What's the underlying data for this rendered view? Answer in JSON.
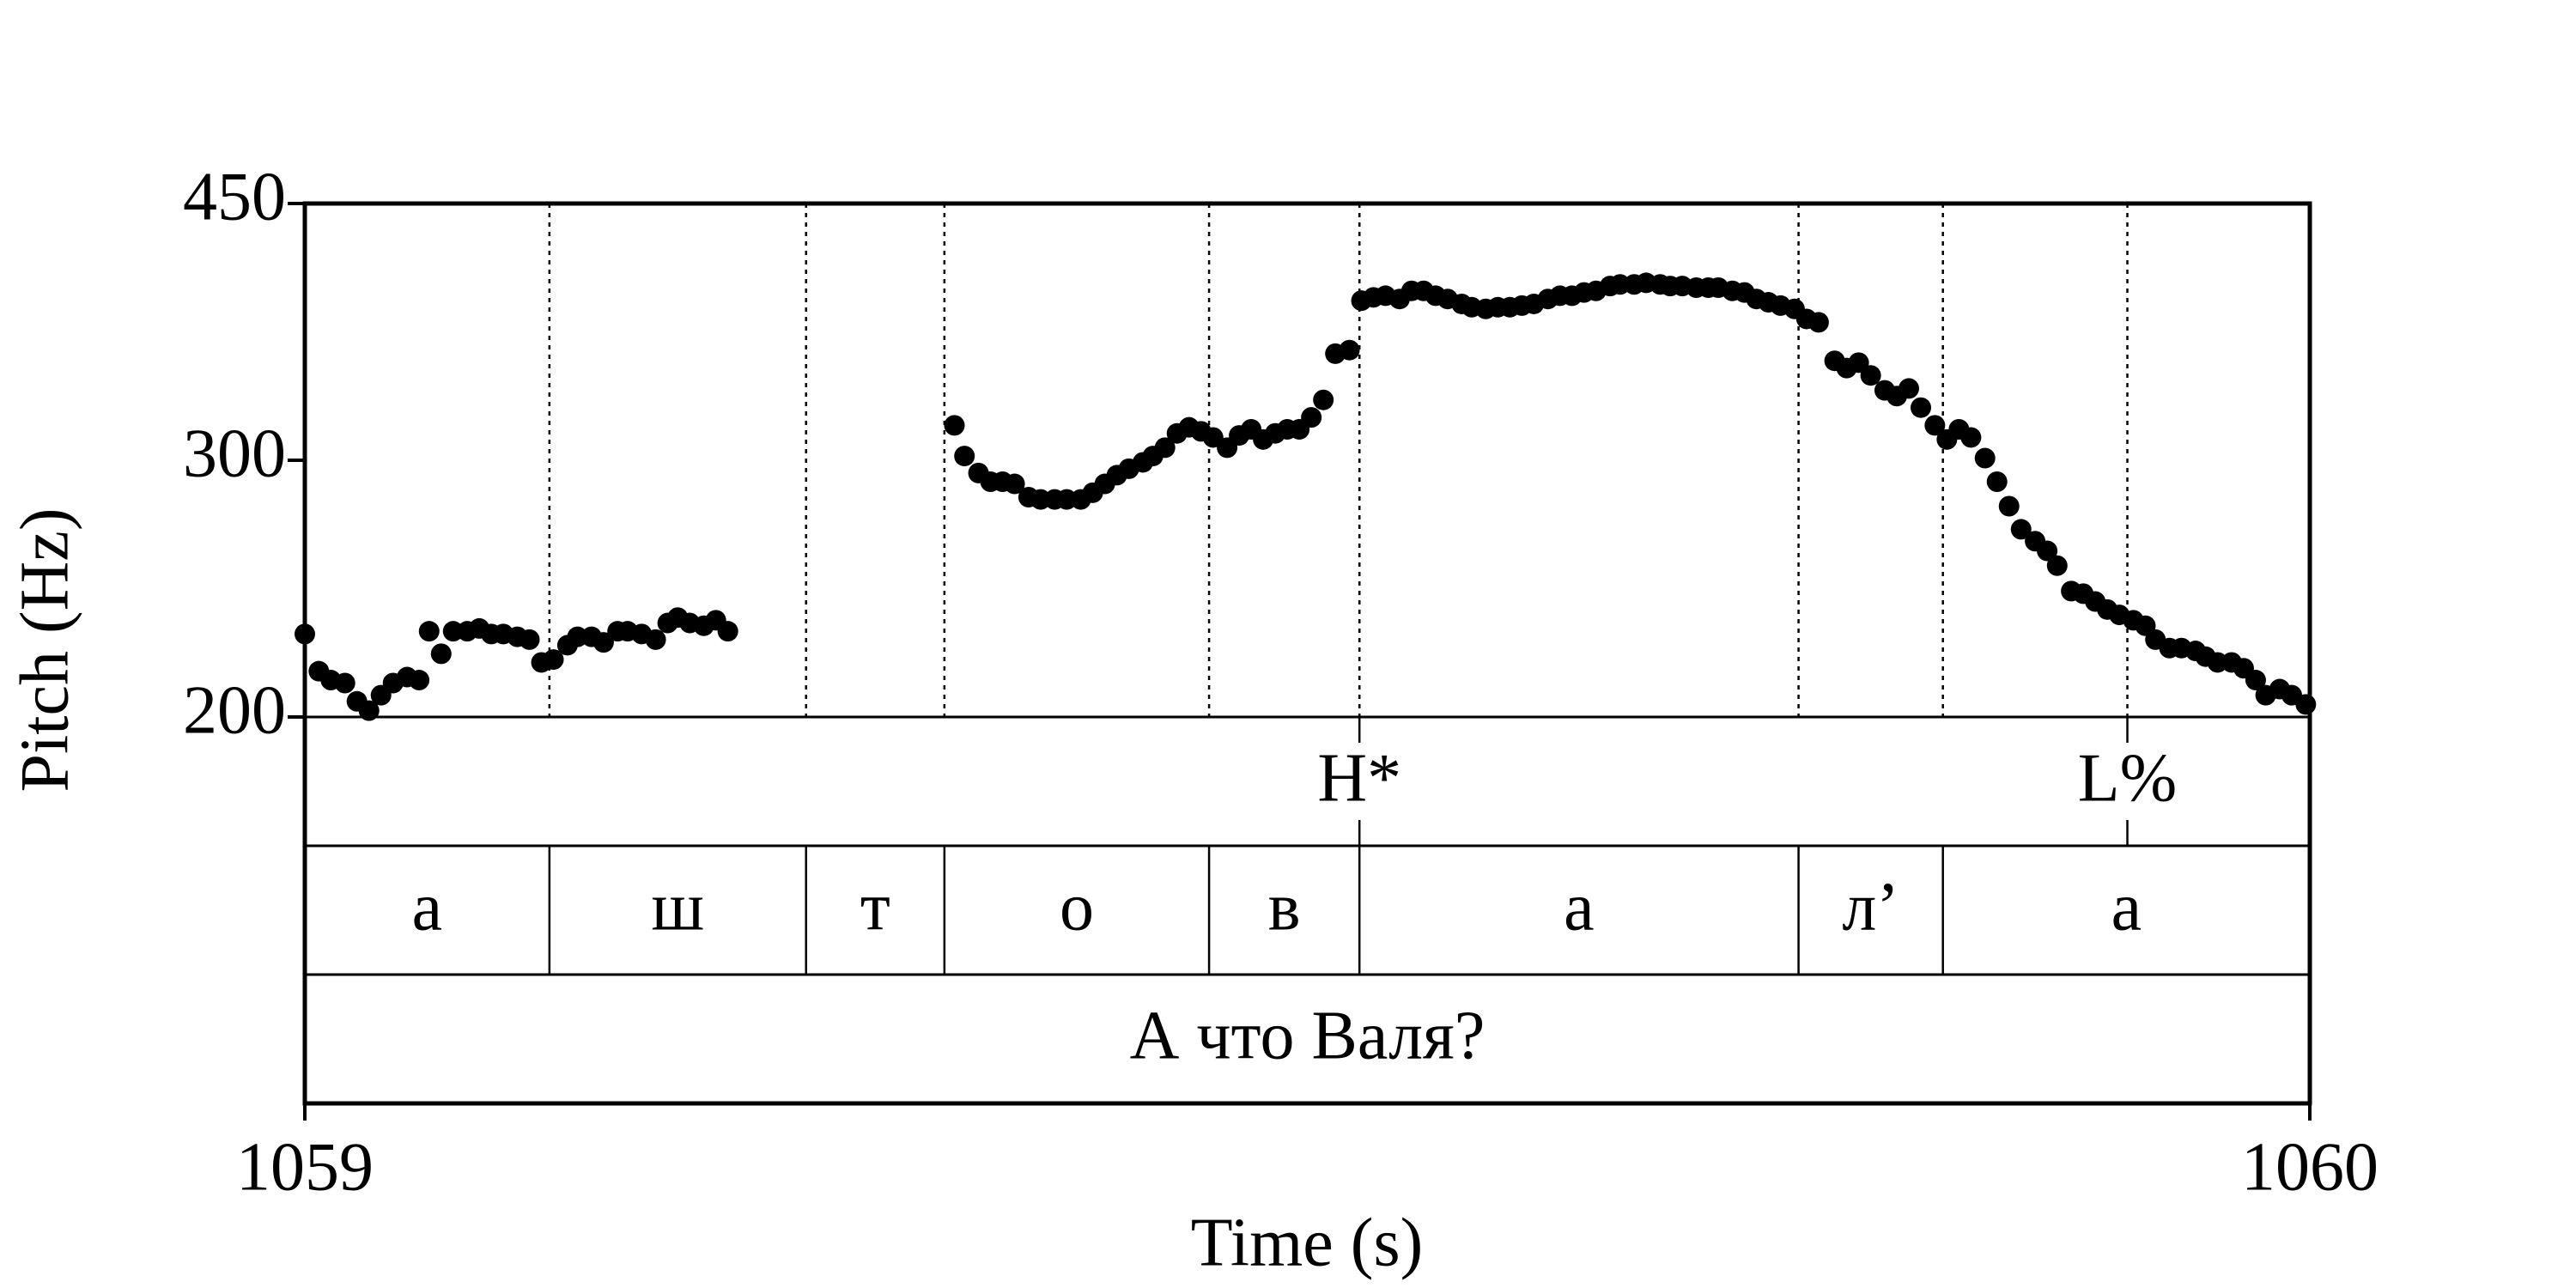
{
  "chart_data": {
    "type": "scatter",
    "x_label": "Time (s)",
    "y_label": "Pitch (Hz)",
    "xlim": [
      1059,
      1060
    ],
    "xticks": [
      1059,
      1060
    ],
    "ylim": [
      200,
      450
    ],
    "yticks": [
      200,
      300,
      450
    ],
    "yscale": "log",
    "color": "#000000",
    "x": [
      1059.0,
      1059.007,
      1059.013,
      1059.02,
      1059.026,
      1059.032,
      1059.038,
      1059.044,
      1059.051,
      1059.057,
      1059.062,
      1059.068,
      1059.074,
      1059.081,
      1059.087,
      1059.093,
      1059.099,
      1059.106,
      1059.112,
      1059.118,
      1059.124,
      1059.131,
      1059.136,
      1059.143,
      1059.149,
      1059.156,
      1059.161,
      1059.168,
      1059.175,
      1059.181,
      1059.186,
      1059.192,
      1059.199,
      1059.205,
      1059.211,
      1059.324,
      1059.329,
      1059.336,
      1059.342,
      1059.348,
      1059.354,
      1059.361,
      1059.367,
      1059.374,
      1059.38,
      1059.387,
      1059.393,
      1059.399,
      1059.405,
      1059.411,
      1059.418,
      1059.423,
      1059.429,
      1059.435,
      1059.441,
      1059.447,
      1059.453,
      1059.46,
      1059.466,
      1059.472,
      1059.478,
      1059.484,
      1059.49,
      1059.496,
      1059.502,
      1059.508,
      1059.514,
      1059.521,
      1059.527,
      1059.533,
      1059.539,
      1059.546,
      1059.552,
      1059.558,
      1059.564,
      1059.57,
      1059.577,
      1059.582,
      1059.589,
      1059.595,
      1059.601,
      1059.607,
      1059.613,
      1059.62,
      1059.626,
      1059.632,
      1059.638,
      1059.644,
      1059.651,
      1059.656,
      1059.663,
      1059.669,
      1059.676,
      1059.681,
      1059.687,
      1059.694,
      1059.7,
      1059.705,
      1059.712,
      1059.718,
      1059.724,
      1059.73,
      1059.736,
      1059.743,
      1059.749,
      1059.755,
      1059.763,
      1059.769,
      1059.775,
      1059.781,
      1059.788,
      1059.794,
      1059.8,
      1059.806,
      1059.813,
      1059.819,
      1059.825,
      1059.831,
      1059.838,
      1059.844,
      1059.85,
      1059.856,
      1059.863,
      1059.869,
      1059.874,
      1059.881,
      1059.887,
      1059.893,
      1059.899,
      1059.905,
      1059.912,
      1059.918,
      1059.923,
      1059.93,
      1059.936,
      1059.943,
      1059.948,
      1059.954,
      1059.961,
      1059.967,
      1059.973,
      1059.978,
      1059.985,
      1059.991,
      1059.998
    ],
    "values": [
      228,
      215,
      212,
      211,
      205,
      202,
      207,
      211,
      213,
      212,
      229,
      221,
      229,
      229,
      230,
      228,
      228,
      227,
      226,
      218,
      219,
      224,
      227,
      227,
      225,
      229,
      229,
      228,
      226,
      232,
      234,
      232,
      231,
      233,
      229,
      317,
      302,
      294,
      290,
      290,
      289,
      283,
      282,
      282,
      282,
      282,
      285,
      289,
      293,
      296,
      299,
      302,
      306,
      313,
      316,
      314,
      311,
      306,
      312,
      315,
      310,
      313,
      315,
      315,
      321,
      330,
      355,
      357,
      386,
      388,
      389,
      387,
      392,
      392,
      389,
      387,
      384,
      382,
      381,
      382,
      382,
      383,
      384,
      387,
      389,
      389,
      391,
      392,
      395,
      396,
      396,
      397,
      396,
      395,
      395,
      394,
      394,
      394,
      392,
      391,
      387,
      385,
      383,
      381,
      375,
      373,
      351,
      347,
      350,
      343,
      335,
      332,
      336,
      326,
      317,
      310,
      315,
      311,
      301,
      290,
      279,
      269,
      264,
      260,
      254,
      244,
      243,
      240,
      237,
      235,
      233,
      231,
      226,
      223,
      223,
      222,
      220,
      218,
      218,
      216,
      212,
      207,
      209,
      207,
      204
    ],
    "tiers": [
      {
        "type": "point",
        "points": [
          {
            "time": 1059.526,
            "text": "H*"
          },
          {
            "time": 1059.909,
            "text": "L%"
          }
        ]
      },
      {
        "type": "interval",
        "intervals": [
          {
            "start": 1059,
            "end": 1059.122,
            "text": "а"
          },
          {
            "start": 1059.122,
            "end": 1059.25,
            "text": "ш"
          },
          {
            "start": 1059.25,
            "end": 1059.319,
            "text": "т"
          },
          {
            "start": 1059.319,
            "end": 1059.451,
            "text": "о"
          },
          {
            "start": 1059.451,
            "end": 1059.526,
            "text": "в"
          },
          {
            "start": 1059.526,
            "end": 1059.745,
            "text": "а"
          },
          {
            "start": 1059.745,
            "end": 1059.817,
            "text": "л’"
          },
          {
            "start": 1059.817,
            "end": 1060,
            "text": "а"
          }
        ]
      },
      {
        "type": "interval",
        "intervals": [
          {
            "start": 1059,
            "end": 1060,
            "text": "А что Валя?"
          }
        ]
      }
    ]
  }
}
